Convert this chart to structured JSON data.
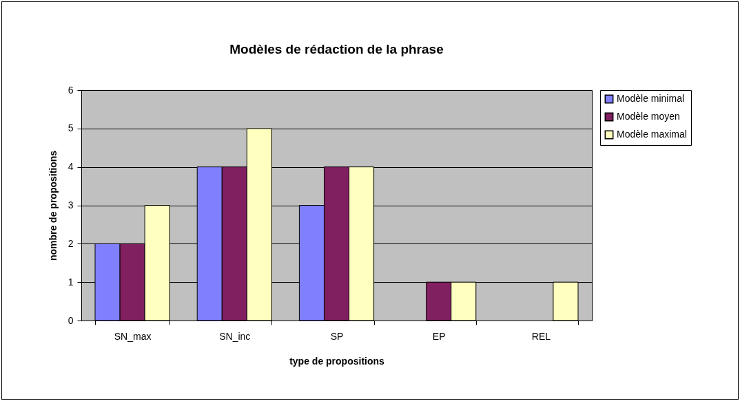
{
  "chart_data": {
    "type": "bar",
    "title": "Modèles de rédaction de la phrase",
    "xlabel": "type de propositions",
    "ylabel": "nombre de propositions",
    "categories": [
      "SN_max",
      "SN_inc",
      "SP",
      "EP",
      "REL"
    ],
    "series": [
      {
        "name": "Modèle minimal",
        "color": "#8080ff",
        "values": [
          2,
          4,
          3,
          null,
          null
        ]
      },
      {
        "name": "Modèle moyen",
        "color": "#802060",
        "values": [
          2,
          4,
          4,
          1,
          null
        ]
      },
      {
        "name": "Modèle maximal",
        "color": "#ffffc0",
        "values": [
          3,
          5,
          4,
          1,
          1
        ]
      }
    ],
    "ylim": [
      0,
      6
    ],
    "yticks": [
      0,
      1,
      2,
      3,
      4,
      5,
      6
    ],
    "grid": "y",
    "legend": "right"
  }
}
